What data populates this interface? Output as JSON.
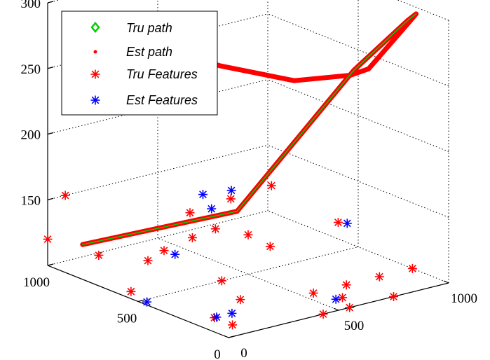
{
  "chart_data": {
    "type": "scatter3d",
    "title": "",
    "xlabel": "",
    "ylabel": "",
    "zlabel": "",
    "xlim": [
      0,
      1000
    ],
    "ylim": [
      0,
      1000
    ],
    "zlim": [
      100,
      300
    ],
    "x_ticks": [
      "0",
      "500",
      "1000"
    ],
    "y_ticks": [
      "0",
      "500",
      "1000"
    ],
    "z_ticks": [
      "150",
      "200",
      "250",
      "300"
    ],
    "grid": true,
    "legend_position": "top-left",
    "colors": {
      "tru_path": "#00d000",
      "est_path": "#ff0000",
      "tru_features": "#ff0000",
      "est_features": "#0000ff"
    },
    "legend": [
      {
        "key": "tru_path",
        "label": "Tru path",
        "marker": "diamond-outline"
      },
      {
        "key": "est_path",
        "label": "Est path",
        "marker": "dot"
      },
      {
        "key": "tru_features",
        "label": "Tru Features",
        "marker": "star"
      },
      {
        "key": "est_features",
        "label": "Est Features",
        "marker": "star"
      }
    ],
    "series": [
      {
        "name": "Tru path",
        "kind": "path",
        "points": [
          [
            60,
            880,
            120
          ],
          [
            450,
            500,
            150
          ],
          [
            800,
            280,
            255
          ],
          [
            980,
            200,
            290
          ],
          [
            1000,
            180,
            295
          ]
        ]
      },
      {
        "name": "Est path",
        "kind": "path",
        "points": [
          [
            60,
            880,
            120
          ],
          [
            450,
            500,
            150
          ],
          [
            800,
            280,
            255
          ],
          [
            980,
            200,
            290
          ],
          [
            1000,
            180,
            295
          ],
          [
            990,
            200,
            289
          ],
          [
            850,
            260,
            255
          ],
          [
            800,
            300,
            250
          ],
          [
            660,
            440,
            244
          ],
          [
            520,
            680,
            248
          ],
          [
            400,
            930,
            255
          ]
        ]
      },
      {
        "name": "Tru Features",
        "kind": "points",
        "points": [
          [
            0,
            1000,
            120
          ],
          [
            80,
            1000,
            150
          ],
          [
            150,
            900,
            107
          ],
          [
            250,
            750,
            107
          ],
          [
            200,
            600,
            125
          ],
          [
            50,
            600,
            100
          ],
          [
            400,
            700,
            140
          ],
          [
            450,
            620,
            130
          ],
          [
            500,
            500,
            130
          ],
          [
            600,
            500,
            117
          ],
          [
            680,
            590,
            155
          ],
          [
            380,
            500,
            100
          ],
          [
            300,
            300,
            100
          ],
          [
            100,
            200,
            100
          ],
          [
            100,
            100,
            100
          ],
          [
            550,
            200,
            100
          ],
          [
            700,
            200,
            100
          ],
          [
            850,
            200,
            100
          ],
          [
            1000,
            200,
            100
          ],
          [
            750,
            0,
            100
          ],
          [
            550,
            0,
            100
          ],
          [
            430,
            0,
            100
          ],
          [
            600,
            100,
            100
          ],
          [
            950,
            550,
            118
          ],
          [
            600,
            930,
            100
          ],
          [
            750,
            900,
            125
          ]
        ]
      },
      {
        "name": "Est Features",
        "kind": "points",
        "points": [
          [
            110,
            200,
            100
          ],
          [
            180,
            200,
            100
          ],
          [
            570,
            100,
            100
          ],
          [
            950,
            500,
            120
          ],
          [
            580,
            800,
            130
          ],
          [
            500,
            750,
            147
          ],
          [
            580,
            690,
            150
          ],
          [
            250,
            600,
            120
          ],
          [
            40,
            500,
            98
          ]
        ]
      }
    ]
  }
}
